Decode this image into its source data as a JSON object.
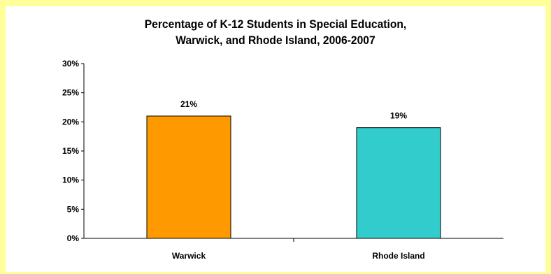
{
  "colors": {
    "page_background": "#ffff99",
    "plot_background": "#ffffff",
    "warwick_bar": "#ff9900",
    "rhode_island_bar": "#33cccc"
  },
  "chart_data": {
    "type": "bar",
    "title_lines": [
      "Percentage of K-12 Students in Special Education,",
      "Warwick, and Rhode Island, 2006-2007"
    ],
    "xlabel": "",
    "ylabel": "",
    "categories": [
      "Warwick",
      "Rhode Island"
    ],
    "values": [
      21,
      19
    ],
    "value_labels": [
      "21%",
      "19%"
    ],
    "bar_colors": [
      "#ff9900",
      "#33cccc"
    ],
    "ylim": [
      0,
      30
    ],
    "y_ticks": [
      0,
      5,
      10,
      15,
      20,
      25,
      30
    ],
    "y_tick_labels": [
      "0%",
      "5%",
      "10%",
      "15%",
      "20%",
      "25%",
      "30%"
    ],
    "grid": false,
    "legend": "none"
  }
}
